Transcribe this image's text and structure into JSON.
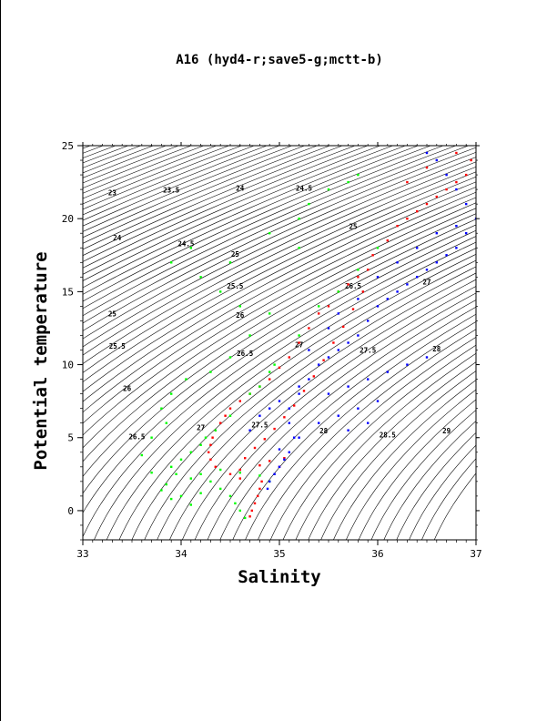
{
  "chart_data": {
    "type": "scatter",
    "title": "A16 (hyd4-r;save5-g;mctt-b)",
    "xlabel": "Salinity",
    "ylabel": "Potential temperature",
    "xlim": [
      33,
      37
    ],
    "ylim": [
      -2,
      25
    ],
    "x_ticks": [
      "33",
      "34",
      "35",
      "36",
      "37"
    ],
    "y_ticks": [
      "0",
      "5",
      "10",
      "15",
      "20",
      "25"
    ],
    "background_contours": "density isopleths (sigma-theta)",
    "series": [
      {
        "color": "#ff0000",
        "points": [
          [
            34.7,
            -0.4
          ],
          [
            34.72,
            0
          ],
          [
            34.75,
            0.5
          ],
          [
            34.78,
            1
          ],
          [
            34.8,
            1.5
          ],
          [
            34.82,
            2
          ],
          [
            34.6,
            2.2
          ],
          [
            34.5,
            2.5
          ],
          [
            34.35,
            3
          ],
          [
            34.3,
            3.5
          ],
          [
            34.28,
            4
          ],
          [
            34.3,
            4.5
          ],
          [
            34.32,
            5
          ],
          [
            34.35,
            5.5
          ],
          [
            34.4,
            6
          ],
          [
            34.45,
            6.5
          ],
          [
            34.5,
            7
          ],
          [
            34.6,
            7.5
          ],
          [
            34.7,
            8
          ],
          [
            34.8,
            8.5
          ],
          [
            34.9,
            9
          ],
          [
            35,
            9.8
          ],
          [
            35.1,
            10.5
          ],
          [
            35.2,
            11.5
          ],
          [
            35.3,
            12.5
          ],
          [
            35.4,
            13.5
          ],
          [
            35.5,
            14
          ],
          [
            35.6,
            15
          ],
          [
            35.7,
            15.5
          ],
          [
            35.8,
            16
          ],
          [
            35.9,
            16.5
          ],
          [
            35.95,
            17.5
          ],
          [
            36.1,
            18.5
          ],
          [
            36.2,
            19.5
          ],
          [
            36.3,
            20
          ],
          [
            36.4,
            20.5
          ],
          [
            36.5,
            21
          ],
          [
            36.6,
            21.5
          ],
          [
            36.7,
            22
          ],
          [
            36.8,
            22.5
          ],
          [
            36.9,
            23
          ],
          [
            36.95,
            24
          ],
          [
            36.8,
            24.5
          ],
          [
            36.5,
            23.5
          ],
          [
            36.3,
            22.5
          ],
          [
            35,
            3
          ],
          [
            35.05,
            3.6
          ],
          [
            34.9,
            3.4
          ],
          [
            34.8,
            3.1
          ],
          [
            34.6,
            2.8
          ],
          [
            34.65,
            3.6
          ],
          [
            34.75,
            4.3
          ],
          [
            34.85,
            4.9
          ],
          [
            34.95,
            5.6
          ],
          [
            35.05,
            6.4
          ],
          [
            35.15,
            7.2
          ],
          [
            35.25,
            8.2
          ],
          [
            35.35,
            9.2
          ],
          [
            35.45,
            10.3
          ],
          [
            35.55,
            11.5
          ],
          [
            35.65,
            12.6
          ],
          [
            35.75,
            13.8
          ],
          [
            35.85,
            15
          ]
        ]
      },
      {
        "color": "#00ff00",
        "points": [
          [
            34.65,
            -0.5
          ],
          [
            34.6,
            0
          ],
          [
            34.55,
            0.5
          ],
          [
            34.5,
            1
          ],
          [
            34.4,
            1.5
          ],
          [
            34.3,
            2
          ],
          [
            34.1,
            2.2
          ],
          [
            33.95,
            2.5
          ],
          [
            33.85,
            1.8
          ],
          [
            33.9,
            3
          ],
          [
            34,
            3.5
          ],
          [
            34.1,
            4
          ],
          [
            34.2,
            4.5
          ],
          [
            34.25,
            5
          ],
          [
            34.35,
            5.5
          ],
          [
            34.5,
            6.5
          ],
          [
            34.7,
            8
          ],
          [
            34.8,
            8.5
          ],
          [
            34.9,
            9.5
          ],
          [
            34.95,
            10
          ],
          [
            35.2,
            12
          ],
          [
            35.4,
            14
          ],
          [
            35.6,
            15
          ],
          [
            35.8,
            16.5
          ],
          [
            36,
            18
          ],
          [
            34.2,
            2.5
          ],
          [
            34.4,
            2.8
          ],
          [
            34.6,
            2.6
          ],
          [
            34.8,
            2.4
          ],
          [
            34.9,
            2
          ],
          [
            34.2,
            1.2
          ],
          [
            34.0,
            1.0
          ],
          [
            33.9,
            0.8
          ],
          [
            34.1,
            0.4
          ],
          [
            33.85,
            6
          ],
          [
            33.8,
            7
          ],
          [
            33.9,
            8
          ],
          [
            34.05,
            9
          ],
          [
            34.3,
            9.5
          ],
          [
            34.5,
            10.5
          ],
          [
            34.7,
            12
          ],
          [
            34.9,
            13.5
          ],
          [
            34.6,
            14
          ],
          [
            34.4,
            15
          ],
          [
            34.2,
            16
          ],
          [
            33.9,
            17
          ],
          [
            34.1,
            18
          ],
          [
            34.5,
            17
          ],
          [
            34.9,
            19
          ],
          [
            35.2,
            20
          ],
          [
            35.3,
            21
          ],
          [
            35.5,
            22
          ],
          [
            35.7,
            22.5
          ],
          [
            35.8,
            23
          ],
          [
            35.2,
            18
          ],
          [
            33.7,
            5
          ],
          [
            33.6,
            3.8
          ],
          [
            33.7,
            2.6
          ],
          [
            33.8,
            1.4
          ]
        ]
      },
      {
        "color": "#0000ff",
        "points": [
          [
            34.88,
            1.5
          ],
          [
            34.9,
            2
          ],
          [
            34.95,
            2.5
          ],
          [
            35,
            3
          ],
          [
            35.05,
            3.5
          ],
          [
            35.1,
            4
          ],
          [
            35.15,
            5
          ],
          [
            35.1,
            6
          ],
          [
            35.1,
            7
          ],
          [
            35.2,
            8
          ],
          [
            35.3,
            9
          ],
          [
            35.4,
            10
          ],
          [
            35.5,
            10.5
          ],
          [
            35.6,
            11
          ],
          [
            35.7,
            11.5
          ],
          [
            35.8,
            12
          ],
          [
            35.9,
            13
          ],
          [
            36,
            14
          ],
          [
            36.1,
            14.5
          ],
          [
            36.2,
            15
          ],
          [
            36.3,
            15.5
          ],
          [
            36.4,
            16
          ],
          [
            36.5,
            16.5
          ],
          [
            36.6,
            17
          ],
          [
            36.7,
            17.5
          ],
          [
            36.8,
            18
          ],
          [
            36.9,
            19
          ],
          [
            37,
            20
          ],
          [
            36.9,
            21
          ],
          [
            36.8,
            22
          ],
          [
            36.7,
            23
          ],
          [
            36.6,
            24
          ],
          [
            36.5,
            24.5
          ],
          [
            34.7,
            5.5
          ],
          [
            34.8,
            6.5
          ],
          [
            34.9,
            7
          ],
          [
            35,
            7.5
          ],
          [
            35.2,
            8.5
          ],
          [
            35.5,
            8
          ],
          [
            35.7,
            8.5
          ],
          [
            35.9,
            9
          ],
          [
            36.1,
            9.5
          ],
          [
            36.3,
            10
          ],
          [
            36.5,
            10.5
          ],
          [
            35.3,
            11
          ],
          [
            35.5,
            12.5
          ],
          [
            35.6,
            13.5
          ],
          [
            35.8,
            14.5
          ],
          [
            36,
            16
          ],
          [
            36.2,
            17
          ],
          [
            36.4,
            18
          ],
          [
            36.6,
            19
          ],
          [
            36.8,
            19.5
          ],
          [
            35.0,
            4.2
          ],
          [
            35.2,
            5
          ],
          [
            35.4,
            6
          ],
          [
            35.6,
            6.5
          ],
          [
            35.8,
            7
          ],
          [
            36.0,
            7.5
          ],
          [
            35.7,
            5.5
          ],
          [
            35.9,
            6
          ]
        ]
      }
    ],
    "isopycnal_labels": [
      {
        "text": "23",
        "s": 33.3,
        "t": 21.6
      },
      {
        "text": "23.5",
        "s": 33.9,
        "t": 21.8
      },
      {
        "text": "24",
        "s": 34.6,
        "t": 21.9
      },
      {
        "text": "24.5",
        "s": 35.25,
        "t": 21.9
      },
      {
        "text": "24",
        "s": 33.35,
        "t": 18.5
      },
      {
        "text": "24.5",
        "s": 34.05,
        "t": 18.1
      },
      {
        "text": "25",
        "s": 34.55,
        "t": 17.4
      },
      {
        "text": "25",
        "s": 35.75,
        "t": 19.3
      },
      {
        "text": "25.5",
        "s": 34.55,
        "t": 15.2
      },
      {
        "text": "26",
        "s": 34.6,
        "t": 13.2
      },
      {
        "text": "25",
        "s": 33.3,
        "t": 13.3
      },
      {
        "text": "25.5",
        "s": 33.35,
        "t": 11.1
      },
      {
        "text": "26.5",
        "s": 34.65,
        "t": 10.6
      },
      {
        "text": "26",
        "s": 33.45,
        "t": 8.2
      },
      {
        "text": "26.5",
        "s": 35.75,
        "t": 15.2
      },
      {
        "text": "27",
        "s": 36.5,
        "t": 15.5
      },
      {
        "text": "27",
        "s": 35.2,
        "t": 11.2
      },
      {
        "text": "27.5",
        "s": 35.9,
        "t": 10.8
      },
      {
        "text": "28",
        "s": 36.6,
        "t": 10.9
      },
      {
        "text": "26.5",
        "s": 33.55,
        "t": 4.9
      },
      {
        "text": "27",
        "s": 34.2,
        "t": 5.5
      },
      {
        "text": "27.5",
        "s": 34.8,
        "t": 5.7
      },
      {
        "text": "28",
        "s": 35.45,
        "t": 5.3
      },
      {
        "text": "28.5",
        "s": 36.1,
        "t": 5
      },
      {
        "text": "29",
        "s": 36.7,
        "t": 5.3
      }
    ]
  }
}
